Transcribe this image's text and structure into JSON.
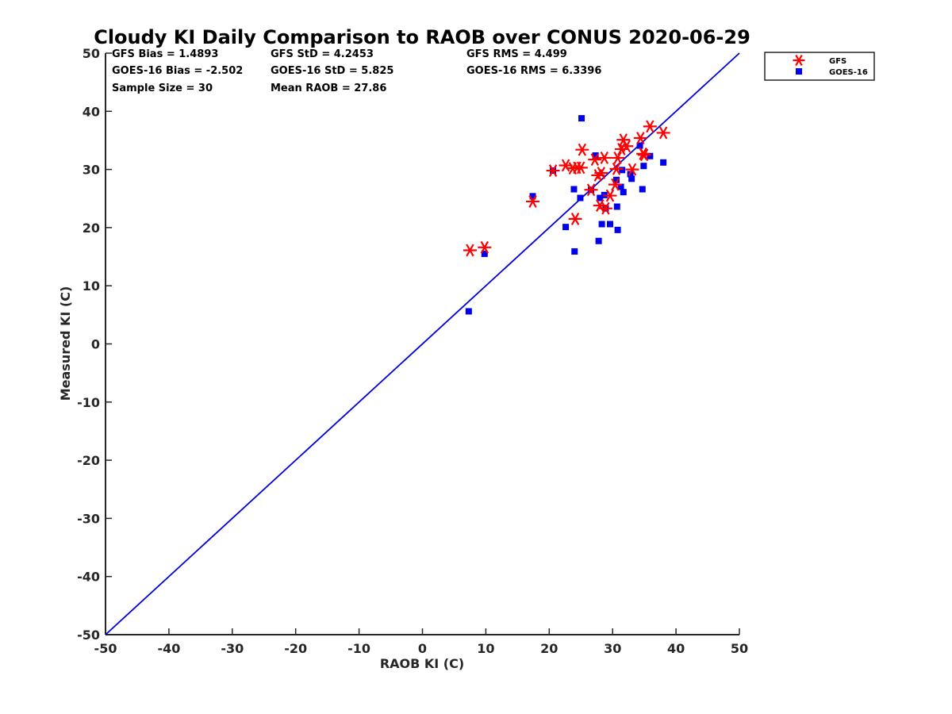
{
  "chart_data": {
    "type": "scatter",
    "title": "Cloudy KI Daily Comparison to RAOB over CONUS 2020-06-29",
    "xlabel": "RAOB KI (C)",
    "ylabel": "Measured KI (C)",
    "xlim": [
      -50,
      50
    ],
    "ylim": [
      -50,
      50
    ],
    "x_ticks": [
      "-50",
      "-40",
      "-30",
      "-20",
      "-10",
      "0",
      "10",
      "20",
      "30",
      "40",
      "50"
    ],
    "y_ticks": [
      "-50",
      "-40",
      "-30",
      "-20",
      "-10",
      "0",
      "10",
      "20",
      "30",
      "40",
      "50"
    ],
    "grid": false,
    "legend_position": "top-right outside",
    "reference_line": {
      "type": "one-to-one",
      "color": "#0000dd"
    },
    "stats": [
      [
        "GFS Bias = 1.4893",
        "GFS StD = 4.2453",
        "GFS RMS = 4.499"
      ],
      [
        "GOES-16 Bias = -2.502",
        "GOES-16 StD = 5.825",
        "GOES-16 RMS = 6.3396"
      ],
      [
        "Sample Size = 30",
        "Mean RAOB = 27.86",
        ""
      ]
    ],
    "series": [
      {
        "name": "GFS",
        "marker": "asterisk",
        "color": "#ff0000",
        "points": [
          [
            7.5,
            16.1
          ],
          [
            9.8,
            16.6
          ],
          [
            17.4,
            24.5
          ],
          [
            20.6,
            29.8
          ],
          [
            22.6,
            30.7
          ],
          [
            23.7,
            30.2
          ],
          [
            24.1,
            21.5
          ],
          [
            24.4,
            30.3
          ],
          [
            25.0,
            30.3
          ],
          [
            25.2,
            33.4
          ],
          [
            26.6,
            26.5
          ],
          [
            27.2,
            31.7
          ],
          [
            27.7,
            29.0
          ],
          [
            28.0,
            23.8
          ],
          [
            28.2,
            29.4
          ],
          [
            28.7,
            32.0
          ],
          [
            28.9,
            23.3
          ],
          [
            29.6,
            25.5
          ],
          [
            30.4,
            27.4
          ],
          [
            30.6,
            30.1
          ],
          [
            30.8,
            32.0
          ],
          [
            31.4,
            33.5
          ],
          [
            31.7,
            35.1
          ],
          [
            32.2,
            34.0
          ],
          [
            33.1,
            30.0
          ],
          [
            34.4,
            35.4
          ],
          [
            34.8,
            32.7
          ],
          [
            35.0,
            32.5
          ],
          [
            35.9,
            37.4
          ],
          [
            38.0,
            36.3
          ]
        ]
      },
      {
        "name": "GOES-16",
        "marker": "square",
        "color": "#0000ee",
        "points": [
          [
            7.3,
            5.6
          ],
          [
            9.8,
            15.5
          ],
          [
            17.4,
            25.4
          ],
          [
            20.6,
            29.8
          ],
          [
            22.6,
            20.1
          ],
          [
            23.9,
            26.6
          ],
          [
            24.0,
            15.9
          ],
          [
            24.9,
            25.1
          ],
          [
            25.1,
            38.8
          ],
          [
            26.6,
            26.5
          ],
          [
            27.3,
            32.4
          ],
          [
            27.8,
            17.7
          ],
          [
            28.0,
            25.1
          ],
          [
            28.3,
            20.6
          ],
          [
            28.7,
            25.6
          ],
          [
            28.9,
            23.3
          ],
          [
            29.6,
            20.6
          ],
          [
            30.6,
            28.2
          ],
          [
            30.7,
            23.6
          ],
          [
            30.8,
            19.6
          ],
          [
            31.3,
            27.0
          ],
          [
            31.5,
            29.9
          ],
          [
            31.7,
            26.1
          ],
          [
            32.8,
            29.2
          ],
          [
            33.0,
            28.4
          ],
          [
            34.3,
            34.1
          ],
          [
            34.7,
            26.6
          ],
          [
            34.9,
            30.6
          ],
          [
            35.9,
            32.3
          ],
          [
            38.0,
            31.2
          ]
        ]
      }
    ]
  }
}
